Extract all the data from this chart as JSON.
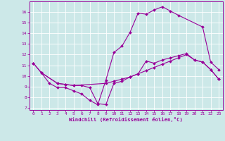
{
  "xlabel": "Windchill (Refroidissement éolien,°C)",
  "background_color": "#cce8e8",
  "line_color": "#990099",
  "xlim_min": -0.5,
  "xlim_max": 23.5,
  "ylim_min": 6.8,
  "ylim_max": 17.0,
  "xticks": [
    0,
    1,
    2,
    3,
    4,
    5,
    6,
    7,
    8,
    9,
    10,
    11,
    12,
    13,
    14,
    15,
    16,
    17,
    18,
    19,
    20,
    21,
    22,
    23
  ],
  "yticks": [
    7,
    8,
    9,
    10,
    11,
    12,
    13,
    14,
    15,
    16
  ],
  "line1_x": [
    0,
    1,
    2,
    3,
    4,
    5,
    6,
    7,
    8,
    9,
    10,
    11,
    12,
    13,
    14,
    15,
    16,
    17,
    18,
    21,
    22,
    23
  ],
  "line1_y": [
    11.2,
    10.3,
    9.3,
    8.9,
    8.9,
    8.6,
    8.3,
    7.7,
    7.3,
    9.6,
    12.2,
    12.8,
    14.1,
    15.9,
    15.8,
    16.2,
    16.5,
    16.1,
    15.7,
    14.6,
    11.3,
    10.6
  ],
  "line2_x": [
    0,
    1,
    3,
    4,
    5,
    9,
    10,
    11,
    12,
    13,
    14,
    15,
    16,
    17,
    18,
    19,
    20,
    21,
    22,
    23
  ],
  "line2_y": [
    11.2,
    10.3,
    9.3,
    9.2,
    9.1,
    9.3,
    9.5,
    9.7,
    9.9,
    10.2,
    10.5,
    10.8,
    11.1,
    11.4,
    11.7,
    12.0,
    11.5,
    11.3,
    10.6,
    9.7
  ],
  "line3_x": [
    1,
    3,
    4,
    5,
    6,
    7,
    8,
    9,
    10,
    11,
    12,
    13,
    14,
    15,
    16,
    17,
    18,
    19,
    20,
    21,
    22,
    23
  ],
  "line3_y": [
    10.3,
    9.3,
    9.2,
    9.1,
    9.1,
    8.9,
    7.4,
    7.3,
    9.3,
    9.5,
    9.9,
    10.2,
    11.4,
    11.2,
    11.5,
    11.7,
    11.9,
    12.1,
    11.5,
    11.3,
    10.6,
    9.7
  ]
}
